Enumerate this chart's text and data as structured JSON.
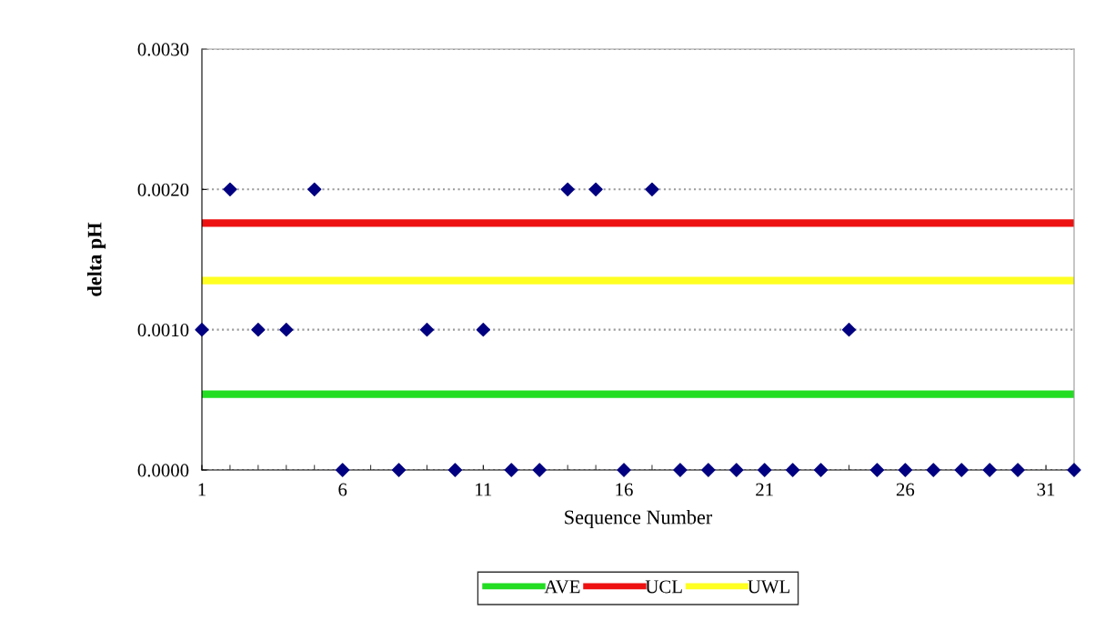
{
  "chart_data": {
    "type": "scatter",
    "xlabel": "Sequence Number",
    "ylabel": "delta pH",
    "x": [
      1,
      2,
      3,
      4,
      5,
      6,
      7,
      8,
      9,
      10,
      11,
      12,
      13,
      14,
      15,
      16,
      17,
      18,
      19,
      20,
      21,
      22,
      23,
      24,
      25,
      26,
      27,
      28,
      29,
      30,
      31,
      32
    ],
    "series": [
      {
        "color": "#000080",
        "values": [
          0.001,
          0.002,
          0.001,
          0.001,
          0.002,
          0,
          null,
          0,
          0.001,
          0,
          0.001,
          0,
          0,
          0.002,
          0.002,
          0,
          0.002,
          0,
          0,
          0,
          0,
          0,
          0,
          0.001,
          0,
          0,
          0,
          0,
          0,
          0,
          null,
          0
        ]
      }
    ],
    "xlim": [
      1,
      32
    ],
    "xticks": [
      1,
      6,
      11,
      16,
      21,
      26,
      31
    ],
    "ylim": [
      0,
      0.003
    ],
    "yticks": [
      {
        "value": 0,
        "label": "0.0000"
      },
      {
        "value": 0.001,
        "label": "0.0010"
      },
      {
        "value": 0.002,
        "label": "0.0020"
      },
      {
        "value": 0.003,
        "label": "0.0030"
      }
    ],
    "ref_lines": [
      {
        "axis": "y",
        "value": 0.00054,
        "label": "AVE",
        "color": "#22dd22"
      },
      {
        "axis": "y",
        "value": 0.00176,
        "label": "UCL",
        "color": "#ee1111"
      },
      {
        "axis": "y",
        "value": 0.00135,
        "label": "UWL",
        "color": "#ffff22"
      }
    ],
    "grid": "y",
    "legend": "bottom",
    "marker": "diamond"
  }
}
